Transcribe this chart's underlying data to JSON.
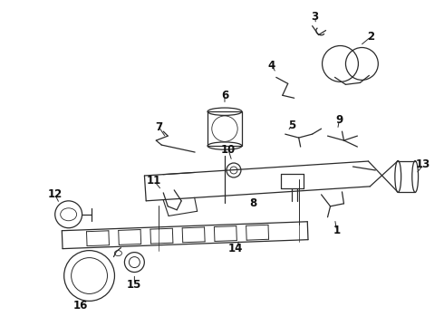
{
  "bg_color": "#ffffff",
  "line_color": "#2a2a2a",
  "label_color": "#111111",
  "figsize": [
    4.9,
    3.6
  ],
  "dpi": 100
}
